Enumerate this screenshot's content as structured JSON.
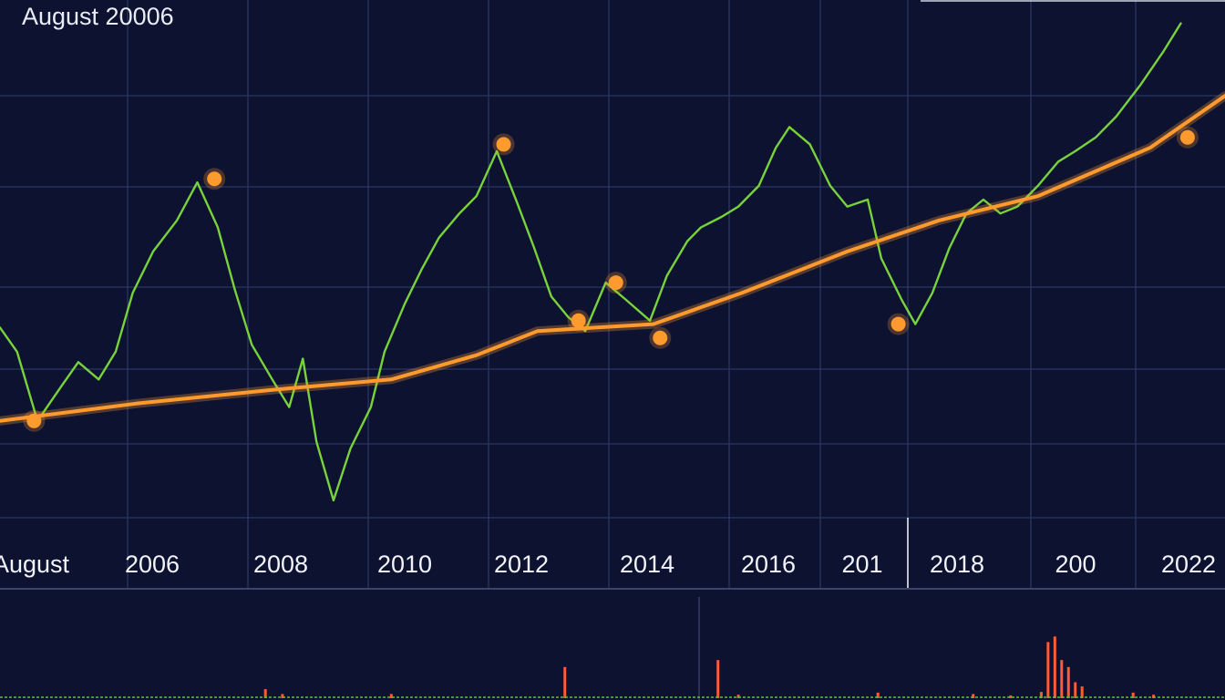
{
  "chart_data": {
    "type": "line",
    "title": "August 20006",
    "x_tick_labels": [
      "August",
      "2006",
      "2008",
      "2010",
      "2012",
      "2014",
      "2016",
      "201",
      "2018",
      "200",
      "2022"
    ],
    "y_tick_labels": [],
    "grid": true,
    "legend": "none",
    "series": [
      {
        "kind": "price",
        "color": "#78d23c",
        "values": [
          [
            0.0,
            0.55
          ],
          [
            0.5,
            0.48
          ],
          [
            1.1,
            0.28
          ],
          [
            1.8,
            0.38
          ],
          [
            2.3,
            0.45
          ],
          [
            2.9,
            0.4
          ],
          [
            3.4,
            0.48
          ],
          [
            3.9,
            0.65
          ],
          [
            4.5,
            0.77
          ],
          [
            5.2,
            0.86
          ],
          [
            5.8,
            0.97
          ],
          [
            6.4,
            0.84
          ],
          [
            6.9,
            0.66
          ],
          [
            7.4,
            0.5
          ],
          [
            8.0,
            0.4
          ],
          [
            8.5,
            0.32
          ],
          [
            8.9,
            0.46
          ],
          [
            9.3,
            0.22
          ],
          [
            9.8,
            0.05
          ],
          [
            10.3,
            0.2
          ],
          [
            10.9,
            0.32
          ],
          [
            11.3,
            0.48
          ],
          [
            11.9,
            0.62
          ],
          [
            12.4,
            0.72
          ],
          [
            12.9,
            0.81
          ],
          [
            13.5,
            0.88
          ],
          [
            14.0,
            0.93
          ],
          [
            14.6,
            1.06
          ],
          [
            15.2,
            0.91
          ],
          [
            15.7,
            0.78
          ],
          [
            16.2,
            0.64
          ],
          [
            16.7,
            0.58
          ],
          [
            17.2,
            0.54
          ],
          [
            17.8,
            0.68
          ],
          [
            18.4,
            0.63
          ],
          [
            19.1,
            0.57
          ],
          [
            19.6,
            0.7
          ],
          [
            20.2,
            0.8
          ],
          [
            20.6,
            0.84
          ],
          [
            21.2,
            0.87
          ],
          [
            21.7,
            0.9
          ],
          [
            22.3,
            0.96
          ],
          [
            22.8,
            1.07
          ],
          [
            23.2,
            1.13
          ],
          [
            23.8,
            1.08
          ],
          [
            24.4,
            0.96
          ],
          [
            24.9,
            0.9
          ],
          [
            25.5,
            0.92
          ],
          [
            25.9,
            0.75
          ],
          [
            26.5,
            0.63
          ],
          [
            26.9,
            0.56
          ],
          [
            27.4,
            0.65
          ],
          [
            27.9,
            0.78
          ],
          [
            28.4,
            0.88
          ],
          [
            28.9,
            0.92
          ],
          [
            29.4,
            0.88
          ],
          [
            29.9,
            0.9
          ],
          [
            30.5,
            0.96
          ],
          [
            31.1,
            1.03
          ],
          [
            31.6,
            1.06
          ],
          [
            32.2,
            1.1
          ],
          [
            32.8,
            1.16
          ],
          [
            33.5,
            1.25
          ],
          [
            34.2,
            1.35
          ],
          [
            34.7,
            1.43
          ]
        ]
      },
      {
        "kind": "trend",
        "color": "#ff9a2e",
        "values": [
          [
            0.0,
            0.28
          ],
          [
            4.0,
            0.33
          ],
          [
            8.0,
            0.37
          ],
          [
            11.5,
            0.4
          ],
          [
            14.0,
            0.47
          ],
          [
            15.8,
            0.54
          ],
          [
            19.2,
            0.56
          ],
          [
            21.8,
            0.65
          ],
          [
            24.9,
            0.77
          ],
          [
            27.6,
            0.86
          ],
          [
            30.5,
            0.93
          ],
          [
            33.8,
            1.07
          ],
          [
            36.0,
            1.22
          ]
        ]
      }
    ],
    "highlighted_points": [
      {
        "x": 1.0,
        "y": 0.28
      },
      {
        "x": 6.3,
        "y": 0.98
      },
      {
        "x": 14.8,
        "y": 1.08
      },
      {
        "x": 17.0,
        "y": 0.57
      },
      {
        "x": 18.1,
        "y": 0.68
      },
      {
        "x": 19.4,
        "y": 0.52
      },
      {
        "x": 26.4,
        "y": 0.56
      },
      {
        "x": 34.9,
        "y": 1.1
      }
    ],
    "volume": {
      "color": "#ff5a3a",
      "bars": [
        [
          7.8,
          0.13
        ],
        [
          8.3,
          0.06
        ],
        [
          11.5,
          0.06
        ],
        [
          16.6,
          0.45
        ],
        [
          21.1,
          0.55
        ],
        [
          21.7,
          0.05
        ],
        [
          25.8,
          0.08
        ],
        [
          28.6,
          0.06
        ],
        [
          29.7,
          0.04
        ],
        [
          30.6,
          0.09
        ],
        [
          30.8,
          0.81
        ],
        [
          31.0,
          0.89
        ],
        [
          31.2,
          0.55
        ],
        [
          31.4,
          0.45
        ],
        [
          31.6,
          0.23
        ],
        [
          31.8,
          0.17
        ],
        [
          33.3,
          0.08
        ],
        [
          33.9,
          0.05
        ]
      ]
    }
  }
}
